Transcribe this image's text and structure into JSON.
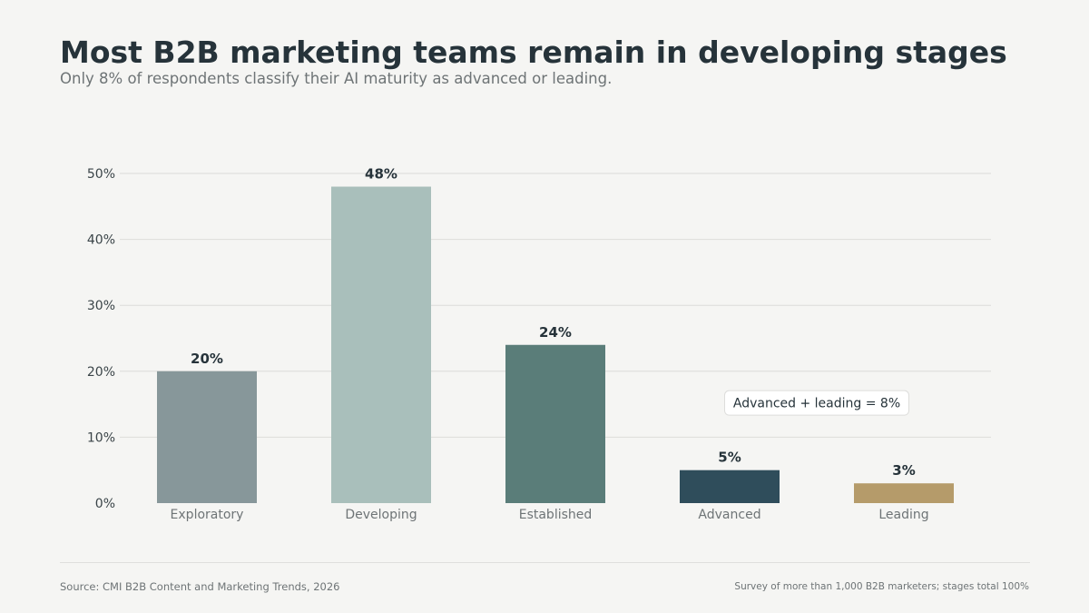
{
  "header": {
    "title": "Most B2B marketing teams remain in developing stages",
    "subtitle": "Only 8% of respondents classify their AI maturity as advanced or leading."
  },
  "footer": {
    "source": "Source: CMI B2B Content and Marketing Trends, 2026",
    "note": "Survey of more than 1,000 B2B marketers; stages total 100%"
  },
  "chart_data": {
    "type": "bar",
    "title": "",
    "xlabel": "",
    "ylabel": "",
    "categories": [
      "Exploratory",
      "Developing",
      "Established",
      "Advanced",
      "Leading"
    ],
    "values": [
      20,
      48,
      24,
      5,
      3
    ],
    "value_labels": [
      "20%",
      "48%",
      "24%",
      "5%",
      "3%"
    ],
    "colors": [
      "#87979a",
      "#a9bfbb",
      "#5a7d79",
      "#2f4d5b",
      "#b59b6a"
    ],
    "ylim": [
      0,
      50
    ],
    "yticks": [
      0,
      10,
      20,
      30,
      40,
      50
    ],
    "ytick_labels": [
      "0%",
      "10%",
      "20%",
      "30%",
      "40%",
      "50%"
    ],
    "grid": true,
    "annotation": {
      "text": "Advanced + leading = 8%",
      "y_value": 15.2
    }
  }
}
